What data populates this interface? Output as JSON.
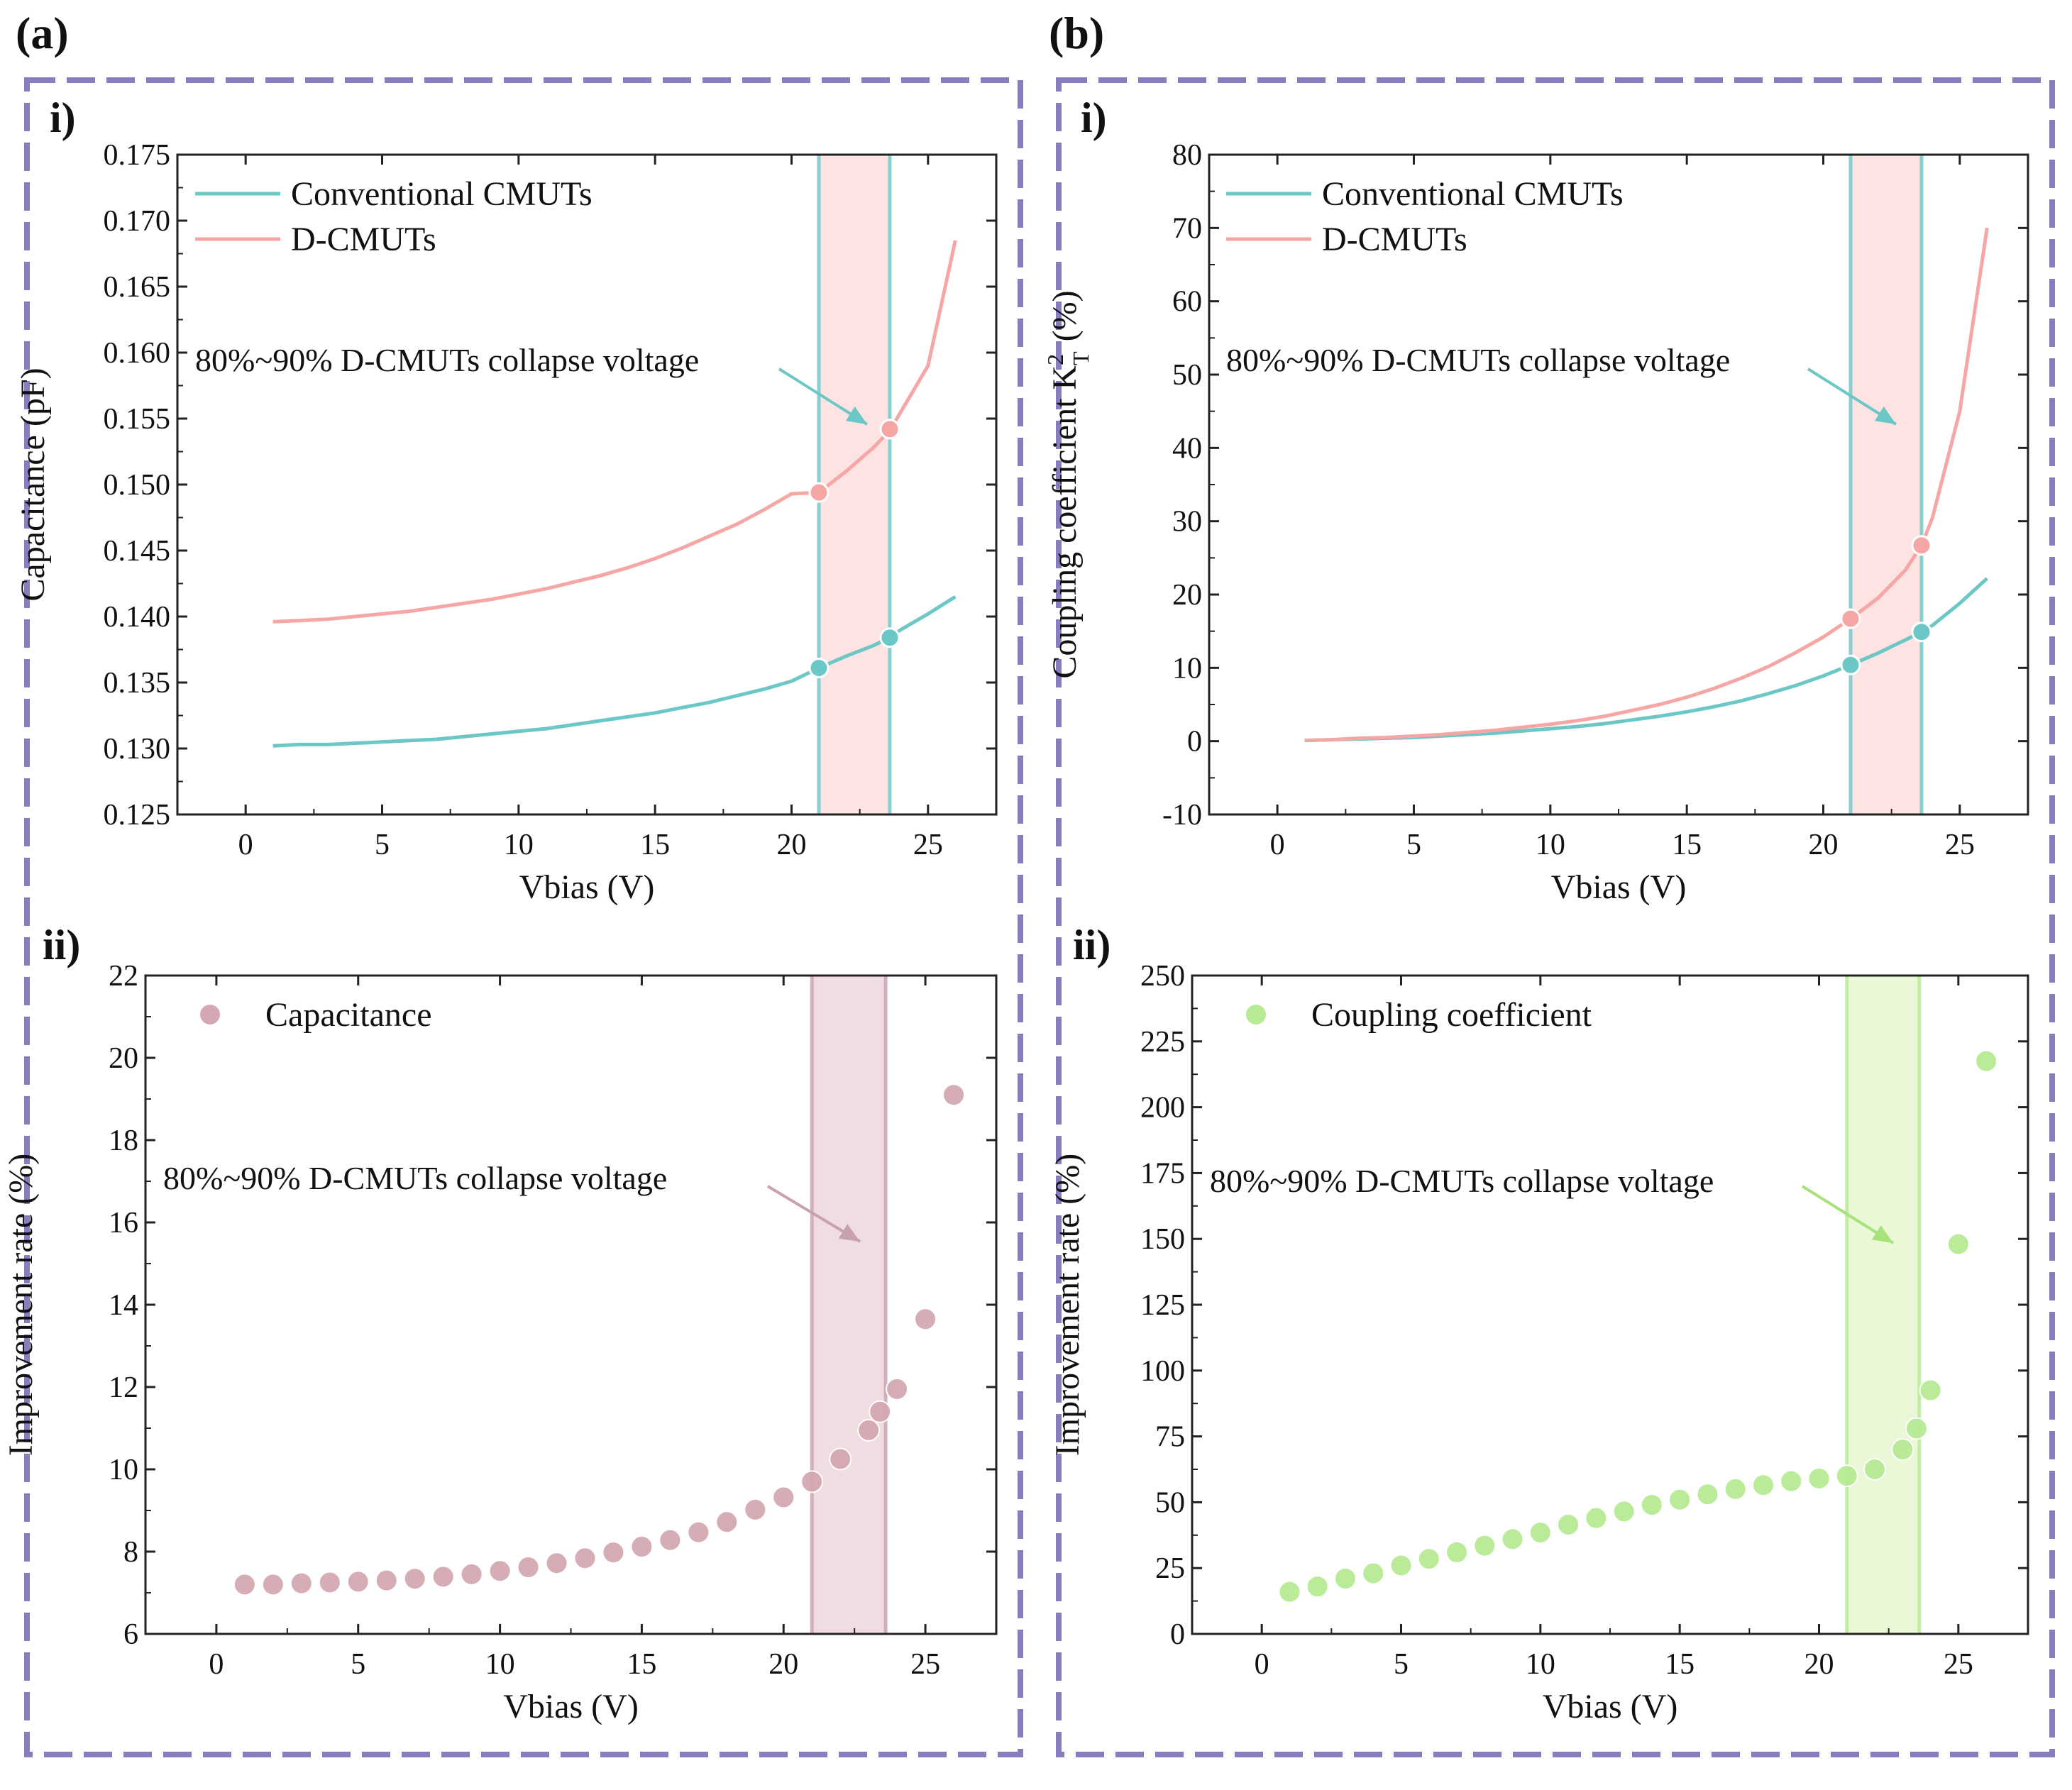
{
  "figure": {
    "panel_a_label": "(a)",
    "panel_b_label": "(b)",
    "sub_i": "i)",
    "sub_ii": "ii)",
    "colors": {
      "conventional": "#6cc7c7",
      "dcmut": "#f7a6a6",
      "capacitance_dots": "#d4a8b2",
      "coupling_dots": "#b7ea94",
      "frame": "#8a7dbf"
    }
  },
  "chart_data": [
    {
      "id": "a_i",
      "type": "line",
      "xlabel": "Vbias (V)",
      "ylabel": "Capacitance (pF)",
      "xlim": [
        -2.5,
        27.5
      ],
      "ylim": [
        0.125,
        0.175
      ],
      "xticks": [
        "0",
        "5",
        "10",
        "15",
        "20",
        "25"
      ],
      "yticks": [
        "0.125",
        "0.130",
        "0.135",
        "0.140",
        "0.145",
        "0.150",
        "0.155",
        "0.160",
        "0.165",
        "0.170",
        "0.175"
      ],
      "band": [
        21,
        23.6
      ],
      "annotation": "80%~90% D-CMUTs collapse voltage",
      "series": [
        {
          "name": "Conventional CMUTs",
          "x": [
            1,
            2,
            3,
            4,
            5,
            6,
            7,
            8,
            9,
            10,
            11,
            12,
            13,
            14,
            15,
            16,
            17,
            18,
            19,
            20,
            21,
            22,
            23,
            23.6,
            24,
            25,
            26
          ],
          "y": [
            0.1302,
            0.1303,
            0.1303,
            0.1304,
            0.1305,
            0.1306,
            0.1307,
            0.1309,
            0.1311,
            0.1313,
            0.1315,
            0.1318,
            0.1321,
            0.1324,
            0.1327,
            0.1331,
            0.1335,
            0.134,
            0.1345,
            0.1351,
            0.1361,
            0.137,
            0.1378,
            0.1384,
            0.139,
            0.1402,
            0.1415
          ],
          "markers": [
            [
              21,
              0.1361
            ],
            [
              23.6,
              0.1384
            ]
          ]
        },
        {
          "name": "D-CMUTs",
          "x": [
            1,
            2,
            3,
            4,
            5,
            6,
            7,
            8,
            9,
            10,
            11,
            12,
            13,
            14,
            15,
            16,
            17,
            18,
            19,
            20,
            21,
            22,
            23,
            23.6,
            24,
            25,
            26
          ],
          "y": [
            0.1396,
            0.1397,
            0.1398,
            0.14,
            0.1402,
            0.1404,
            0.1407,
            0.141,
            0.1413,
            0.1417,
            0.1421,
            0.1426,
            0.1431,
            0.1437,
            0.1444,
            0.1452,
            0.1461,
            0.147,
            0.1481,
            0.1493,
            0.1494,
            0.151,
            0.1528,
            0.1541,
            0.1555,
            0.159,
            0.1685
          ],
          "markers": [
            [
              21,
              0.1494
            ],
            [
              23.6,
              0.1542
            ]
          ]
        }
      ]
    },
    {
      "id": "b_i",
      "type": "line",
      "xlabel": "Vbias (V)",
      "ylabel": "Coupling coefficient K",
      "ylabel_sup": "2",
      "ylabel_sub": "T",
      "ylabel_unit": "(%)",
      "xlim": [
        -2.5,
        27.5
      ],
      "ylim": [
        -10,
        80
      ],
      "xticks": [
        "0",
        "5",
        "10",
        "15",
        "20",
        "25"
      ],
      "yticks": [
        "-10",
        "0",
        "10",
        "20",
        "30",
        "40",
        "50",
        "60",
        "70",
        "80"
      ],
      "band": [
        21,
        23.6
      ],
      "annotation": "80%~90% D-CMUTs collapse voltage",
      "series": [
        {
          "name": "Conventional CMUTs",
          "x": [
            1,
            2,
            3,
            4,
            5,
            6,
            7,
            8,
            9,
            10,
            11,
            12,
            13,
            14,
            15,
            16,
            17,
            18,
            19,
            20,
            21,
            22,
            23,
            23.6,
            24,
            25,
            26
          ],
          "y": [
            0.1,
            0.2,
            0.3,
            0.4,
            0.5,
            0.7,
            0.9,
            1.1,
            1.4,
            1.7,
            2.0,
            2.4,
            2.9,
            3.4,
            4.0,
            4.7,
            5.5,
            6.5,
            7.6,
            8.9,
            10.4,
            12.0,
            13.8,
            14.9,
            15.8,
            18.8,
            22.2
          ],
          "markers": [
            [
              21,
              10.4
            ],
            [
              23.6,
              14.9
            ]
          ]
        },
        {
          "name": "D-CMUTs",
          "x": [
            1,
            2,
            3,
            4,
            5,
            6,
            7,
            8,
            9,
            10,
            11,
            12,
            13,
            14,
            15,
            16,
            17,
            18,
            19,
            20,
            21,
            22,
            23,
            23.6,
            24,
            25,
            26
          ],
          "y": [
            0.1,
            0.2,
            0.4,
            0.5,
            0.7,
            0.9,
            1.2,
            1.5,
            1.9,
            2.3,
            2.8,
            3.4,
            4.2,
            5.0,
            6.0,
            7.2,
            8.6,
            10.2,
            12.1,
            14.2,
            16.7,
            19.5,
            23.3,
            26.7,
            30.5,
            45.0,
            70.0
          ],
          "markers": [
            [
              21,
              16.7
            ],
            [
              23.6,
              26.7
            ]
          ]
        }
      ]
    },
    {
      "id": "a_ii",
      "type": "scatter",
      "xlabel": "Vbias (V)",
      "ylabel": "Improvement rate (%)",
      "xlim": [
        -2.5,
        27.5
      ],
      "ylim": [
        6,
        22
      ],
      "xticks": [
        "0",
        "5",
        "10",
        "15",
        "20",
        "25"
      ],
      "yticks": [
        "6",
        "8",
        "10",
        "12",
        "14",
        "16",
        "18",
        "20",
        "22"
      ],
      "band": [
        21,
        23.6
      ],
      "annotation": "80%~90% D-CMUTs collapse voltage",
      "series": [
        {
          "name": "Capacitance",
          "x": [
            1,
            2,
            3,
            4,
            5,
            6,
            7,
            8,
            9,
            10,
            11,
            12,
            13,
            14,
            15,
            16,
            17,
            18,
            19,
            20,
            21,
            22,
            23,
            23.4,
            24,
            25,
            26
          ],
          "y": [
            7.2,
            7.2,
            7.23,
            7.25,
            7.27,
            7.3,
            7.34,
            7.39,
            7.45,
            7.53,
            7.62,
            7.72,
            7.84,
            7.98,
            8.12,
            8.28,
            8.47,
            8.72,
            9.02,
            9.32,
            9.7,
            10.25,
            10.95,
            11.4,
            11.95,
            13.65,
            19.1
          ]
        }
      ]
    },
    {
      "id": "b_ii",
      "type": "scatter",
      "xlabel": "Vbias (V)",
      "ylabel": "Improvement rate (%)",
      "xlim": [
        -2.5,
        27.5
      ],
      "ylim": [
        0,
        250
      ],
      "xticks": [
        "0",
        "5",
        "10",
        "15",
        "20",
        "25"
      ],
      "yticks": [
        "0",
        "25",
        "50",
        "75",
        "100",
        "125",
        "150",
        "175",
        "200",
        "225",
        "250"
      ],
      "band": [
        21,
        23.6
      ],
      "annotation": "80%~90% D-CMUTs collapse voltage",
      "series": [
        {
          "name": "Coupling coefficient",
          "x": [
            1,
            2,
            3,
            4,
            5,
            6,
            7,
            8,
            9,
            10,
            11,
            12,
            13,
            14,
            15,
            16,
            17,
            18,
            19,
            20,
            21,
            22,
            23,
            23.5,
            24,
            25,
            26
          ],
          "y": [
            16,
            18,
            21,
            23,
            26,
            28.5,
            31,
            33.5,
            36,
            38.5,
            41.5,
            44,
            46.5,
            49,
            51,
            53,
            55,
            56.5,
            58,
            59,
            60,
            62.5,
            70,
            78,
            92.5,
            148,
            217.5
          ]
        }
      ]
    }
  ]
}
